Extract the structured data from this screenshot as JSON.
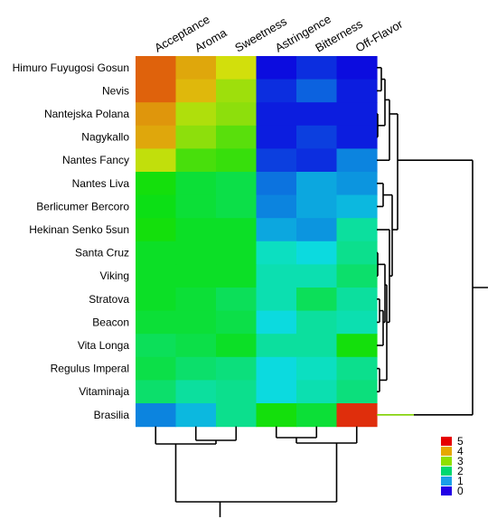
{
  "chart_data": {
    "type": "heatmap",
    "columns": [
      "Acceptance",
      "Aroma",
      "Sweetness",
      "Astringence",
      "Bitterness",
      "Off-Flavor"
    ],
    "rows": [
      "Himuro Fuyugosi Gosun",
      "Nevis",
      "Nantejska Polana",
      "Nagykallo",
      "Nantes Fancy",
      "Nantes Liva",
      "Berlicumer Bercoro",
      "Hekinan Senko 5sun",
      "Santa Cruz",
      "Viking",
      "Stratova",
      "Beacon",
      "Vita Longa",
      "Regulus Imperal",
      "Vitaminaja",
      "Brasilia"
    ],
    "values": [
      [
        4.5,
        4.1,
        3.7,
        0.1,
        0.3,
        0.1
      ],
      [
        4.5,
        4.0,
        3.4,
        0.3,
        0.6,
        0.2
      ],
      [
        4.2,
        3.5,
        3.3,
        0.2,
        0.2,
        0.2
      ],
      [
        4.1,
        3.3,
        3.0,
        0.2,
        0.4,
        0.2
      ],
      [
        3.6,
        2.9,
        2.8,
        0.4,
        0.3,
        0.8
      ],
      [
        2.6,
        2.3,
        2.2,
        0.7,
        1.0,
        0.9
      ],
      [
        2.5,
        2.3,
        2.2,
        0.8,
        1.0,
        1.1
      ],
      [
        2.6,
        2.4,
        2.4,
        1.0,
        0.9,
        1.7
      ],
      [
        2.4,
        2.4,
        2.4,
        1.5,
        1.3,
        1.8
      ],
      [
        2.4,
        2.4,
        2.4,
        1.6,
        1.6,
        2.0
      ],
      [
        2.4,
        2.3,
        2.1,
        1.6,
        2.1,
        1.7
      ],
      [
        2.3,
        2.3,
        2.2,
        1.3,
        1.7,
        1.6
      ],
      [
        2.1,
        2.2,
        2.4,
        1.7,
        1.7,
        2.6
      ],
      [
        2.2,
        2.0,
        1.9,
        1.3,
        1.5,
        1.8
      ],
      [
        2.0,
        1.7,
        1.8,
        1.3,
        1.6,
        1.9
      ],
      [
        0.8,
        1.1,
        1.8,
        2.6,
        2.3,
        4.8
      ]
    ],
    "legend": {
      "ticks": [
        "5",
        "4",
        "3",
        "2",
        "1",
        "0"
      ]
    },
    "color_scale": [
      "#e60000",
      "#e6a800",
      "#c8e600",
      "#00e600",
      "#00e6a0",
      "#00c8e6",
      "#0033e6",
      "#2200e6"
    ]
  }
}
